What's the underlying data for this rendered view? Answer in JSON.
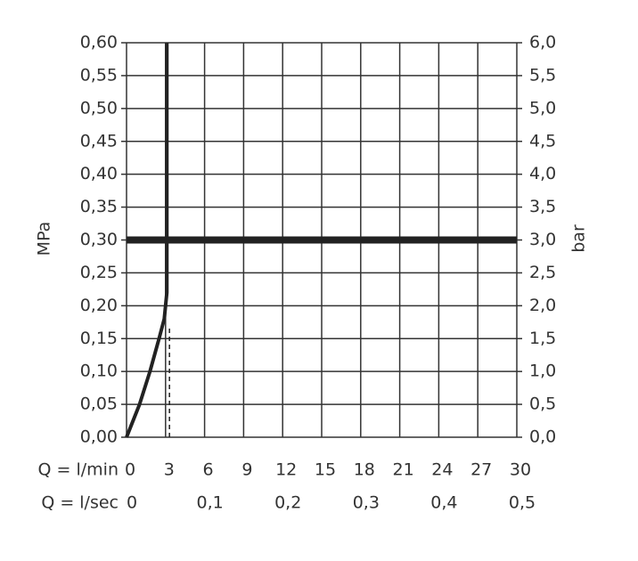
{
  "chart_data": {
    "type": "line",
    "xlabel": "Q = l/min",
    "x2label": "Q = l/sec",
    "ylabel": "MPa",
    "y2label": "bar",
    "x": [
      0,
      1,
      1.8,
      2.5,
      2.9,
      3.1,
      3.1
    ],
    "series": [
      {
        "color": "#222222",
        "values": [
          0,
          0.05,
          0.1,
          0.15,
          0.18,
          0.22,
          0.6
        ]
      }
    ],
    "hline": 0.3,
    "marker": {
      "x": 3.3,
      "y": 0.17
    },
    "xlim": [
      0,
      30
    ],
    "xticks": [
      0,
      3,
      6,
      9,
      12,
      15,
      18,
      21,
      24,
      27,
      30
    ],
    "x2lim": [
      0,
      0.5
    ],
    "x2ticks": [
      0,
      {
        "value": 0.1,
        "label": "0,1"
      },
      {
        "value": 0.2,
        "label": "0,2"
      },
      {
        "value": 0.3,
        "label": "0,3"
      },
      {
        "value": 0.4,
        "label": "0,4"
      },
      {
        "value": 0.5,
        "label": "0,5"
      }
    ],
    "ylim": [
      0,
      0.6
    ],
    "yticks": [
      {
        "value": 0,
        "label": "0,00"
      },
      {
        "value": 0.05,
        "label": "0,05"
      },
      {
        "value": 0.1,
        "label": "0,10"
      },
      {
        "value": 0.15,
        "label": "0,15"
      },
      {
        "value": 0.2,
        "label": "0,20"
      },
      {
        "value": 0.25,
        "label": "0,25"
      },
      {
        "value": 0.3,
        "label": "0,30"
      },
      {
        "value": 0.35,
        "label": "0,35"
      },
      {
        "value": 0.4,
        "label": "0,40"
      },
      {
        "value": 0.45,
        "label": "0,45"
      },
      {
        "value": 0.5,
        "label": "0,50"
      },
      {
        "value": 0.55,
        "label": "0,55"
      },
      {
        "value": 0.6,
        "label": "0,60"
      }
    ],
    "y2lim": [
      0,
      6
    ],
    "y2ticks": [
      {
        "value": 0,
        "label": "0,0"
      },
      {
        "value": 0.5,
        "label": "0,5"
      },
      {
        "value": 1,
        "label": "1,0"
      },
      {
        "value": 1.5,
        "label": "1,5"
      },
      {
        "value": 2,
        "label": "2,0"
      },
      {
        "value": 2.5,
        "label": "2,5"
      },
      {
        "value": 3,
        "label": "3,0"
      },
      {
        "value": 3.5,
        "label": "3,5"
      },
      {
        "value": 4,
        "label": "4,0"
      },
      {
        "value": 4.5,
        "label": "4,5"
      },
      {
        "value": 5,
        "label": "5,0"
      },
      {
        "value": 5.5,
        "label": "5,5"
      },
      {
        "value": 6,
        "label": "6,0"
      }
    ],
    "grid": true
  }
}
